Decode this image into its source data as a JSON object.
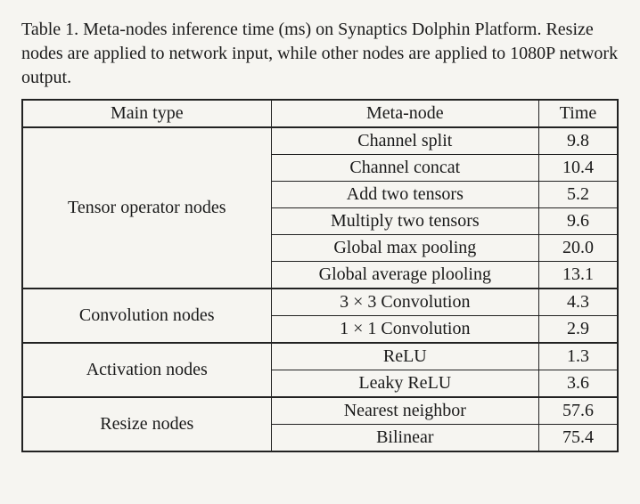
{
  "caption": "Table 1. Meta-nodes inference time (ms) on Synaptics Dolphin Platform. Resize nodes are applied to network input, while other nodes are applied to 1080P network output.",
  "table": {
    "columns": [
      "Main type",
      "Meta-node",
      "Time"
    ],
    "groups": [
      {
        "main_type": "Tensor operator nodes",
        "rows": [
          {
            "meta": "Channel split",
            "time": "9.8"
          },
          {
            "meta": "Channel concat",
            "time": "10.4"
          },
          {
            "meta": "Add two tensors",
            "time": "5.2"
          },
          {
            "meta": "Multiply two tensors",
            "time": "9.6"
          },
          {
            "meta": "Global max pooling",
            "time": "20.0"
          },
          {
            "meta": "Global average plooling",
            "time": "13.1"
          }
        ]
      },
      {
        "main_type": "Convolution nodes",
        "rows": [
          {
            "meta": "3 × 3 Convolution",
            "time": "4.3"
          },
          {
            "meta": "1 × 1 Convolution",
            "time": "2.9"
          }
        ]
      },
      {
        "main_type": "Activation nodes",
        "rows": [
          {
            "meta": "ReLU",
            "time": "1.3"
          },
          {
            "meta": "Leaky ReLU",
            "time": "3.6"
          }
        ]
      },
      {
        "main_type": "Resize nodes",
        "rows": [
          {
            "meta": "Nearest neighbor",
            "time": "57.6"
          },
          {
            "meta": "Bilinear",
            "time": "75.4"
          }
        ]
      }
    ],
    "border_color": "#222222",
    "background_color": "#f6f5f1",
    "font_family": "Times New Roman",
    "font_size_pt": 15,
    "column_align": [
      "center",
      "center",
      "center"
    ]
  }
}
